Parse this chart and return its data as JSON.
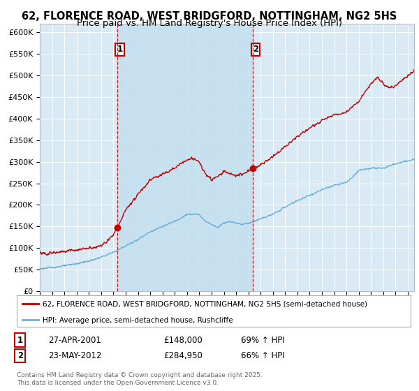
{
  "title": "62, FLORENCE ROAD, WEST BRIDGFORD, NOTTINGHAM, NG2 5HS",
  "subtitle": "Price paid vs. HM Land Registry's House Price Index (HPI)",
  "xlim_start": 1995.0,
  "xlim_end": 2025.5,
  "ylim": [
    0,
    620000
  ],
  "yticks": [
    0,
    50000,
    100000,
    150000,
    200000,
    250000,
    300000,
    350000,
    400000,
    450000,
    500000,
    550000,
    600000
  ],
  "background_color": "#daeaf5",
  "shade_color": "#c5dff0",
  "grid_color": "#ffffff",
  "hpi_color": "#6badd6",
  "price_color": "#c00000",
  "sale1_date": 2001.32,
  "sale1_price": 148000,
  "sale2_date": 2012.39,
  "sale2_price": 284950,
  "legend_label1": "62, FLORENCE ROAD, WEST BRIDGFORD, NOTTINGHAM, NG2 5HS (semi-detached house)",
  "legend_label2": "HPI: Average price, semi-detached house, Rushcliffe",
  "footer": "Contains HM Land Registry data © Crown copyright and database right 2025.\nThis data is licensed under the Open Government Licence v3.0.",
  "title_fontsize": 10.5,
  "subtitle_fontsize": 9.5
}
